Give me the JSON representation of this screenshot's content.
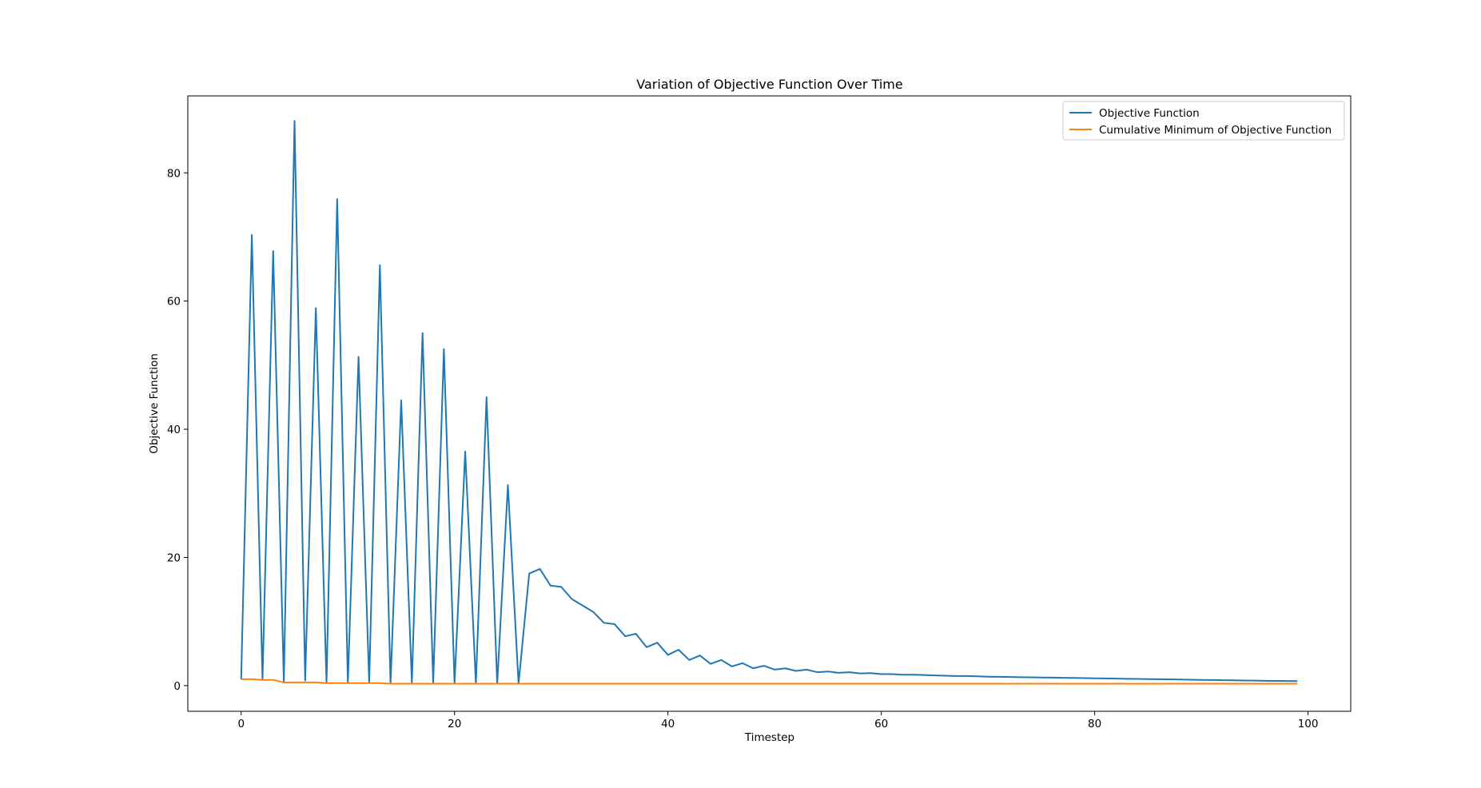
{
  "chart_data": {
    "type": "line",
    "title": "Variation of Objective Function Over Time",
    "xlabel": "Timestep",
    "ylabel": "Objective Function",
    "xlim": [
      -5,
      104
    ],
    "ylim": [
      -4,
      92
    ],
    "xticks": [
      0,
      20,
      40,
      60,
      80,
      100
    ],
    "yticks": [
      0,
      20,
      40,
      60,
      80
    ],
    "grid": false,
    "legend_position": "top-right",
    "series": [
      {
        "name": "Objective Function",
        "color": "#1f77b4",
        "x": [
          0,
          1,
          2,
          3,
          4,
          5,
          6,
          7,
          8,
          9,
          10,
          11,
          12,
          13,
          14,
          15,
          16,
          17,
          18,
          19,
          20,
          21,
          22,
          23,
          24,
          25,
          26,
          27,
          28,
          29,
          30,
          31,
          32,
          33,
          34,
          35,
          36,
          37,
          38,
          39,
          40,
          41,
          42,
          43,
          44,
          45,
          46,
          47,
          48,
          49,
          50,
          51,
          52,
          53,
          54,
          55,
          56,
          57,
          58,
          59,
          60,
          61,
          62,
          63,
          64,
          65,
          66,
          67,
          68,
          69,
          70,
          71,
          72,
          73,
          74,
          75,
          76,
          77,
          78,
          79,
          80,
          81,
          82,
          83,
          84,
          85,
          86,
          87,
          88,
          89,
          90,
          91,
          92,
          93,
          94,
          95,
          96,
          97,
          98,
          99
        ],
        "y": [
          1.0,
          70.3,
          0.9,
          67.8,
          0.5,
          88.1,
          0.8,
          58.9,
          0.4,
          75.9,
          0.4,
          51.3,
          0.4,
          65.6,
          0.3,
          44.5,
          0.4,
          55.0,
          0.4,
          52.5,
          0.3,
          36.5,
          0.3,
          45.0,
          0.3,
          31.3,
          0.3,
          17.5,
          18.2,
          15.6,
          15.4,
          13.5,
          12.5,
          11.5,
          9.8,
          9.6,
          7.7,
          8.1,
          6.0,
          6.7,
          4.8,
          5.6,
          4.0,
          4.7,
          3.4,
          4.0,
          3.0,
          3.5,
          2.7,
          3.1,
          2.5,
          2.7,
          2.3,
          2.5,
          2.1,
          2.2,
          2.0,
          2.1,
          1.9,
          1.95,
          1.8,
          1.8,
          1.7,
          1.7,
          1.65,
          1.6,
          1.55,
          1.5,
          1.5,
          1.45,
          1.4,
          1.38,
          1.35,
          1.32,
          1.3,
          1.27,
          1.25,
          1.22,
          1.2,
          1.17,
          1.15,
          1.12,
          1.1,
          1.07,
          1.05,
          1.02,
          1.0,
          0.98,
          0.95,
          0.93,
          0.9,
          0.88,
          0.85,
          0.83,
          0.8,
          0.78,
          0.76,
          0.74,
          0.72,
          0.7
        ]
      },
      {
        "name": "Cumulative Minimum of Objective Function",
        "color": "#ff7f0e",
        "x": [
          0,
          1,
          2,
          3,
          4,
          5,
          6,
          7,
          8,
          9,
          10,
          11,
          12,
          13,
          14,
          15,
          16,
          17,
          18,
          19,
          20,
          21,
          22,
          23,
          24,
          25,
          26,
          27,
          28,
          29,
          30,
          31,
          32,
          33,
          34,
          35,
          36,
          37,
          38,
          39,
          40,
          41,
          42,
          43,
          44,
          45,
          46,
          47,
          48,
          49,
          50,
          51,
          52,
          53,
          54,
          55,
          56,
          57,
          58,
          59,
          60,
          61,
          62,
          63,
          64,
          65,
          66,
          67,
          68,
          69,
          70,
          71,
          72,
          73,
          74,
          75,
          76,
          77,
          78,
          79,
          80,
          81,
          82,
          83,
          84,
          85,
          86,
          87,
          88,
          89,
          90,
          91,
          92,
          93,
          94,
          95,
          96,
          97,
          98,
          99
        ],
        "y": [
          1.0,
          1.0,
          0.9,
          0.9,
          0.5,
          0.5,
          0.5,
          0.5,
          0.4,
          0.4,
          0.4,
          0.4,
          0.4,
          0.4,
          0.3,
          0.3,
          0.3,
          0.3,
          0.3,
          0.3,
          0.3,
          0.3,
          0.3,
          0.3,
          0.3,
          0.3,
          0.3,
          0.3,
          0.3,
          0.3,
          0.3,
          0.3,
          0.3,
          0.3,
          0.3,
          0.3,
          0.3,
          0.3,
          0.3,
          0.3,
          0.3,
          0.3,
          0.3,
          0.3,
          0.3,
          0.3,
          0.3,
          0.3,
          0.3,
          0.3,
          0.3,
          0.3,
          0.3,
          0.3,
          0.3,
          0.3,
          0.3,
          0.3,
          0.3,
          0.3,
          0.3,
          0.3,
          0.3,
          0.3,
          0.3,
          0.3,
          0.3,
          0.3,
          0.3,
          0.3,
          0.3,
          0.3,
          0.3,
          0.3,
          0.3,
          0.3,
          0.3,
          0.3,
          0.3,
          0.3,
          0.3,
          0.3,
          0.3,
          0.3,
          0.3,
          0.3,
          0.3,
          0.3,
          0.3,
          0.3,
          0.3,
          0.3,
          0.3,
          0.3,
          0.3,
          0.3,
          0.3,
          0.3,
          0.3,
          0.3
        ]
      }
    ]
  }
}
